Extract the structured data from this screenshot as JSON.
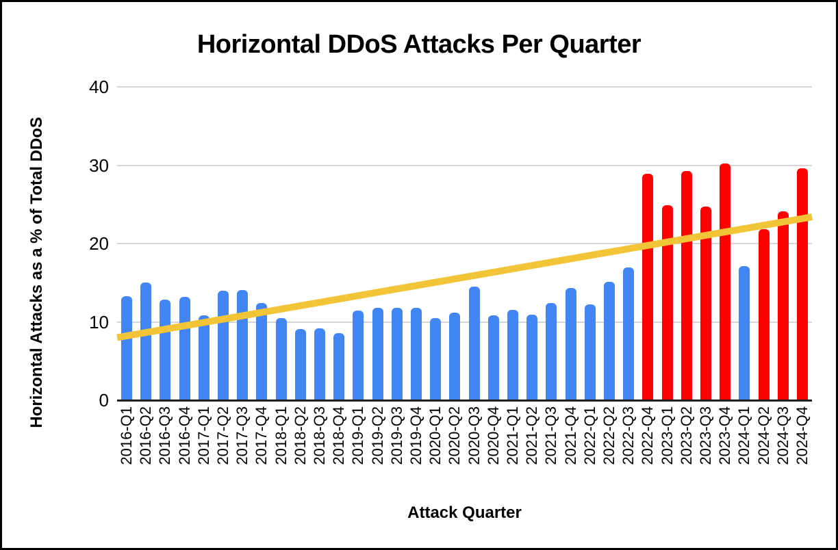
{
  "chart_data": {
    "type": "bar",
    "title": "Horizontal DDoS Attacks Per Quarter",
    "xlabel": "Attack Quarter",
    "ylabel": "Horizontal Attacks as a % of Total DDoS",
    "ylim": [
      0,
      40
    ],
    "yticks": [
      0,
      10,
      20,
      30,
      40
    ],
    "grid": true,
    "legend": "none",
    "categories": [
      "2016-Q1",
      "2016-Q2",
      "2016-Q3",
      "2016-Q4",
      "2017-Q1",
      "2017-Q2",
      "2017-Q3",
      "2017-Q4",
      "2018-Q1",
      "2018-Q2",
      "2018-Q3",
      "2018-Q4",
      "2019-Q1",
      "2019-Q2",
      "2019-Q3",
      "2019-Q4",
      "2020-Q1",
      "2020-Q2",
      "2020-Q3",
      "2020-Q4",
      "2021-Q1",
      "2021-Q2",
      "2021-Q3",
      "2021-Q4",
      "2022-Q1",
      "2022-Q2",
      "2022-Q3",
      "2022-Q4",
      "2023-Q1",
      "2023-Q2",
      "2023-Q3",
      "2023-Q4",
      "2024-Q1",
      "2024-Q2",
      "2024-Q3",
      "2024-Q4"
    ],
    "values": [
      13.3,
      15.0,
      12.8,
      13.2,
      10.8,
      14.0,
      14.1,
      12.4,
      10.5,
      9.1,
      9.2,
      8.6,
      11.4,
      11.8,
      11.8,
      11.8,
      10.5,
      11.2,
      14.5,
      10.8,
      11.5,
      10.9,
      12.4,
      14.3,
      12.2,
      15.1,
      16.9,
      28.9,
      24.9,
      29.3,
      24.7,
      30.2,
      17.1,
      21.8,
      24.1,
      29.6
    ],
    "red_categories": [
      "2022-Q4",
      "2023-Q1",
      "2023-Q2",
      "2023-Q3",
      "2023-Q4",
      "2024-Q2",
      "2024-Q3",
      "2024-Q4"
    ],
    "trendline": {
      "type": "linear",
      "start_value": 8.0,
      "end_value": 23.4
    },
    "colors": {
      "bar_default": "#4285F4",
      "bar_highlight": "#FF0000",
      "trendline": "#F2C437",
      "gridline": "#D5D5D5",
      "axis_line": "#212121",
      "text": "#000000"
    }
  }
}
